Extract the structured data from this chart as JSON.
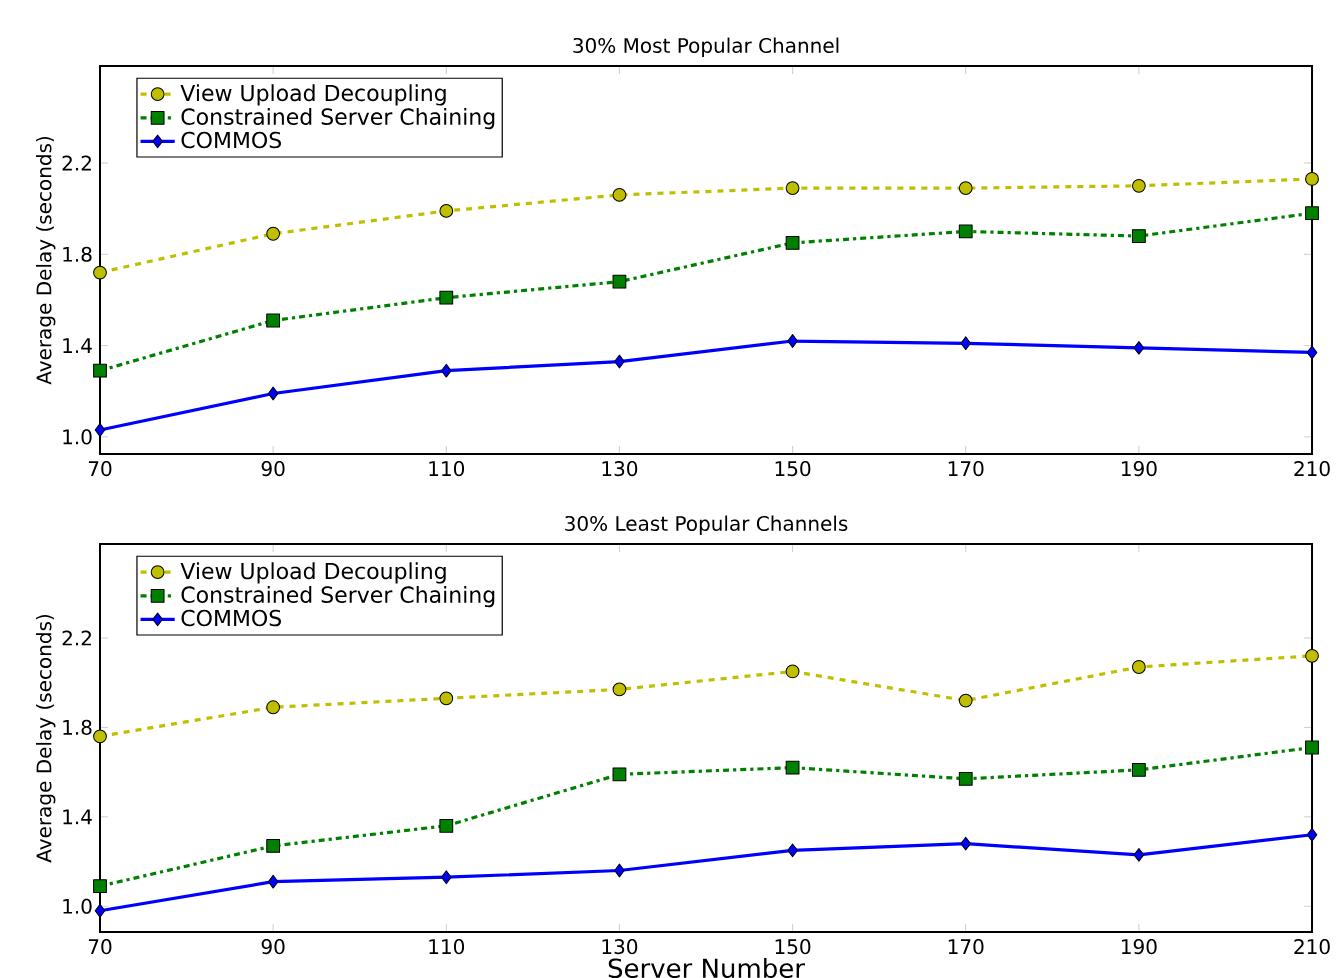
{
  "chart_data": [
    {
      "type": "line",
      "title": "30% Most Popular Channel",
      "ylabel": "Average Delay (seconds)",
      "x": [
        70,
        90,
        110,
        130,
        150,
        170,
        190,
        210
      ],
      "series": [
        {
          "name": "View Upload Decoupling",
          "color": "#bfbf00",
          "marker": "circle",
          "line_style": "dashed",
          "values": [
            1.72,
            1.89,
            1.99,
            2.06,
            2.09,
            2.09,
            2.1,
            2.13
          ]
        },
        {
          "name": "Constrained Server Chaining",
          "color": "#008000",
          "marker": "square",
          "line_style": "dashdot",
          "values": [
            1.29,
            1.51,
            1.61,
            1.68,
            1.85,
            1.9,
            1.88,
            1.98
          ]
        },
        {
          "name": "COMMOS",
          "color": "#0000ff",
          "marker": "diamond",
          "line_style": "solid",
          "values": [
            1.03,
            1.19,
            1.29,
            1.33,
            1.42,
            1.41,
            1.39,
            1.37
          ]
        }
      ],
      "xlim": [
        70,
        210
      ],
      "ylim": [
        0.925,
        2.625
      ],
      "xticks": [
        70,
        90,
        110,
        130,
        150,
        170,
        190,
        210
      ],
      "yticks": [
        {
          "value": 1.0,
          "label": "1.0"
        },
        {
          "value": 1.4,
          "label": "1.4"
        },
        {
          "value": 1.8,
          "label": "1.8"
        },
        {
          "value": 2.2,
          "label": "2.2"
        }
      ],
      "legend": "top left",
      "grid": false
    },
    {
      "type": "line",
      "title": "30% Least Popular Channels",
      "xlabel": "Server Number",
      "ylabel": "Average Delay (seconds)",
      "x": [
        70,
        90,
        110,
        130,
        150,
        170,
        190,
        210
      ],
      "series": [
        {
          "name": "View Upload Decoupling",
          "color": "#bfbf00",
          "marker": "circle",
          "line_style": "dashed",
          "values": [
            1.76,
            1.89,
            1.93,
            1.97,
            2.05,
            1.92,
            2.07,
            2.12
          ]
        },
        {
          "name": "Constrained Server Chaining",
          "color": "#008000",
          "marker": "square",
          "line_style": "dashdot",
          "values": [
            1.09,
            1.27,
            1.36,
            1.59,
            1.62,
            1.57,
            1.61,
            1.71
          ]
        },
        {
          "name": "COMMOS",
          "color": "#0000ff",
          "marker": "diamond",
          "line_style": "solid",
          "values": [
            0.98,
            1.11,
            1.13,
            1.16,
            1.25,
            1.28,
            1.23,
            1.32
          ]
        }
      ],
      "xlim": [
        70,
        210
      ],
      "ylim": [
        0.885,
        2.62
      ],
      "xticks": [
        70,
        90,
        110,
        130,
        150,
        170,
        190,
        210
      ],
      "yticks": [
        {
          "value": 1.0,
          "label": "1.0"
        },
        {
          "value": 1.4,
          "label": "1.4"
        },
        {
          "value": 1.8,
          "label": "1.8"
        },
        {
          "value": 2.2,
          "label": "2.2"
        }
      ],
      "legend": "top left",
      "grid": false
    }
  ]
}
